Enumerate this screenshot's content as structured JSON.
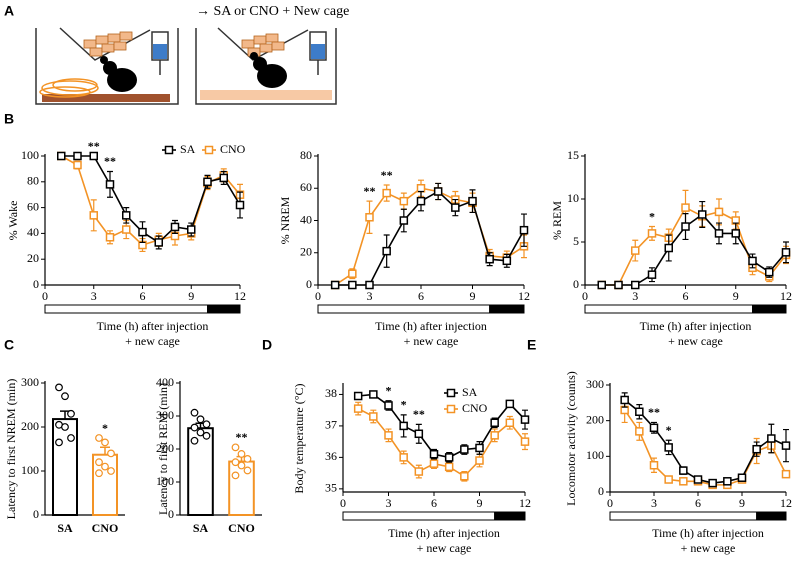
{
  "panel_labels": [
    "A",
    "B",
    "C",
    "D",
    "E"
  ],
  "header_text": "→ SA or CNO + New cage",
  "chart_data": [
    {
      "type": "line",
      "ylabel": "% Wake",
      "xlabel": [
        "Time (h) after injection",
        "+ new cage"
      ],
      "x": [
        1,
        2,
        3,
        4,
        5,
        6,
        7,
        8,
        9,
        10,
        11,
        12
      ],
      "xlim": [
        0,
        12
      ],
      "xticks": [
        0,
        3,
        6,
        9,
        12
      ],
      "ylim": [
        0,
        100
      ],
      "yticks": [
        0,
        20,
        40,
        60,
        80,
        100
      ],
      "dark_phase": [
        10,
        12
      ],
      "legend": "top-right",
      "series": [
        {
          "name": "SA",
          "color": "#000000",
          "values": [
            100,
            100,
            100,
            78,
            54,
            41,
            33,
            45,
            43,
            80,
            83,
            62
          ],
          "errors": [
            0,
            0,
            0,
            10,
            6,
            8,
            5,
            5,
            5,
            5,
            5,
            10
          ]
        },
        {
          "name": "CNO",
          "color": "#f39325",
          "values": [
            100,
            93,
            54,
            37,
            43,
            31,
            35,
            38,
            40,
            79,
            85,
            70
          ],
          "errors": [
            0,
            3,
            12,
            5,
            7,
            5,
            5,
            7,
            5,
            5,
            5,
            8
          ]
        }
      ],
      "annotations": [
        {
          "x": 3,
          "text": "**"
        },
        {
          "x": 4,
          "text": "**"
        }
      ]
    },
    {
      "type": "line",
      "ylabel": "% NREM",
      "xlabel": [
        "Time (h) after injection",
        "+ new cage"
      ],
      "x": [
        1,
        2,
        3,
        4,
        5,
        6,
        7,
        8,
        9,
        10,
        11,
        12
      ],
      "xlim": [
        0,
        12
      ],
      "xticks": [
        0,
        3,
        6,
        9,
        12
      ],
      "ylim": [
        0,
        80
      ],
      "yticks": [
        0,
        20,
        40,
        60,
        80
      ],
      "dark_phase": [
        10,
        12
      ],
      "series": [
        {
          "name": "SA",
          "color": "#000000",
          "values": [
            0,
            0,
            0,
            21,
            40,
            52,
            58,
            48,
            52,
            16,
            15,
            34
          ],
          "errors": [
            0,
            0,
            0,
            10,
            7,
            6,
            5,
            5,
            7,
            4,
            4,
            10
          ]
        },
        {
          "name": "CNO",
          "color": "#f39325",
          "values": [
            0,
            7,
            42,
            57,
            52,
            60,
            58,
            53,
            51,
            18,
            17,
            24
          ],
          "errors": [
            0,
            3,
            10,
            5,
            5,
            5,
            5,
            5,
            6,
            4,
            4,
            7
          ]
        }
      ],
      "annotations": [
        {
          "x": 3,
          "text": "**"
        },
        {
          "x": 4,
          "text": "**"
        }
      ]
    },
    {
      "type": "line",
      "ylabel": "% REM",
      "xlabel": [
        "Time (h) after injection",
        "+ new cage"
      ],
      "x": [
        1,
        2,
        3,
        4,
        5,
        6,
        7,
        8,
        9,
        10,
        11,
        12
      ],
      "xlim": [
        0,
        12
      ],
      "xticks": [
        0,
        3,
        6,
        9,
        12
      ],
      "ylim": [
        0,
        15
      ],
      "yticks": [
        0,
        5,
        10,
        15
      ],
      "dark_phase": [
        10,
        12
      ],
      "series": [
        {
          "name": "SA",
          "color": "#000000",
          "values": [
            0,
            0,
            0,
            1.2,
            4.3,
            6.8,
            8.2,
            6,
            6,
            2.8,
            1.5,
            3.8
          ],
          "errors": [
            0,
            0,
            0,
            0.8,
            1.5,
            1.5,
            1.5,
            1.2,
            1.2,
            0.8,
            0.6,
            1.2
          ]
        },
        {
          "name": "CNO",
          "color": "#f39325",
          "values": [
            0,
            0,
            4,
            6,
            5.5,
            9,
            8,
            8.5,
            7.5,
            2,
            1,
            3.5
          ],
          "errors": [
            0,
            0,
            1.2,
            0.8,
            1,
            2,
            1.2,
            1.5,
            1,
            0.8,
            0.6,
            1
          ]
        }
      ],
      "annotations": [
        {
          "x": 4,
          "text": "*"
        }
      ]
    },
    {
      "type": "bar",
      "ylabel": "Latency to first NREM (min)",
      "categories": [
        "SA",
        "CNO"
      ],
      "values": [
        218,
        137
      ],
      "errors": [
        18,
        17
      ],
      "colors": [
        "#000000",
        "#f39325"
      ],
      "points": [
        [
          290,
          270,
          230,
          205,
          200,
          175,
          165
        ],
        [
          175,
          165,
          140,
          120,
          110,
          100,
          95
        ]
      ],
      "ylim": [
        0,
        300
      ],
      "yticks": [
        0,
        100,
        200,
        300
      ],
      "annotations": [
        {
          "x": 1,
          "text": "*"
        }
      ]
    },
    {
      "type": "bar",
      "ylabel": "Latency to first REM (min)",
      "categories": [
        "SA",
        "CNO"
      ],
      "values": [
        263,
        162
      ],
      "errors": [
        15,
        15
      ],
      "colors": [
        "#000000",
        "#f39325"
      ],
      "points": [
        [
          310,
          290,
          275,
          265,
          250,
          240,
          225
        ],
        [
          205,
          185,
          170,
          160,
          150,
          135,
          120
        ]
      ],
      "ylim": [
        0,
        400
      ],
      "yticks": [
        0,
        100,
        200,
        300,
        400
      ],
      "annotations": [
        {
          "x": 1,
          "text": "**"
        }
      ]
    },
    {
      "type": "line",
      "ylabel": "Body temperature (°C)",
      "xlabel": [
        "Time (h) after injection",
        "+ new cage"
      ],
      "x": [
        1,
        2,
        3,
        4,
        5,
        6,
        7,
        8,
        9,
        10,
        11,
        12
      ],
      "xlim": [
        0,
        12
      ],
      "xticks": [
        0,
        3,
        6,
        9,
        12
      ],
      "ylim": [
        34.9,
        38.3
      ],
      "yticks": [
        35,
        36,
        37,
        38
      ],
      "dark_phase": [
        10,
        12
      ],
      "legend": "top-center",
      "series": [
        {
          "name": "SA",
          "color": "#000000",
          "values": [
            37.95,
            38.0,
            37.65,
            37.0,
            36.75,
            36.1,
            36.0,
            36.25,
            36.3,
            37.1,
            37.7,
            37.2
          ],
          "errors": [
            0.1,
            0.1,
            0.15,
            0.35,
            0.3,
            0.15,
            0.15,
            0.15,
            0.2,
            0.15,
            0.1,
            0.3
          ]
        },
        {
          "name": "CNO",
          "color": "#f39325",
          "values": [
            37.55,
            37.3,
            36.7,
            36.0,
            35.55,
            35.8,
            35.7,
            35.4,
            35.9,
            36.7,
            37.1,
            36.5
          ],
          "errors": [
            0.2,
            0.2,
            0.2,
            0.2,
            0.2,
            0.15,
            0.15,
            0.15,
            0.2,
            0.2,
            0.2,
            0.25
          ]
        }
      ],
      "annotations": [
        {
          "x": 3,
          "text": "*"
        },
        {
          "x": 4,
          "text": "*"
        },
        {
          "x": 5,
          "text": "**"
        }
      ]
    },
    {
      "type": "line",
      "ylabel": "Locomotor activity (counts)",
      "xlabel": [
        "Time (h) after injection",
        "+ new cage"
      ],
      "x": [
        1,
        2,
        3,
        4,
        5,
        6,
        7,
        8,
        9,
        10,
        11,
        12
      ],
      "xlim": [
        0,
        12
      ],
      "xticks": [
        0,
        3,
        6,
        9,
        12
      ],
      "ylim": [
        0,
        300
      ],
      "yticks": [
        0,
        100,
        200,
        300
      ],
      "dark_phase": [
        10,
        12
      ],
      "series": [
        {
          "name": "SA",
          "color": "#000000",
          "values": [
            258,
            225,
            180,
            125,
            60,
            35,
            25,
            30,
            40,
            120,
            150,
            130
          ],
          "errors": [
            20,
            20,
            15,
            20,
            10,
            8,
            5,
            8,
            8,
            20,
            40,
            45
          ]
        },
        {
          "name": "CNO",
          "color": "#f39325",
          "values": [
            230,
            170,
            75,
            35,
            30,
            30,
            20,
            20,
            35,
            115,
            130,
            50
          ],
          "errors": [
            35,
            25,
            20,
            8,
            8,
            8,
            5,
            5,
            8,
            35,
            20,
            8
          ]
        }
      ],
      "annotations": [
        {
          "x": 3,
          "text": "**"
        },
        {
          "x": 4,
          "text": "*"
        }
      ]
    }
  ]
}
